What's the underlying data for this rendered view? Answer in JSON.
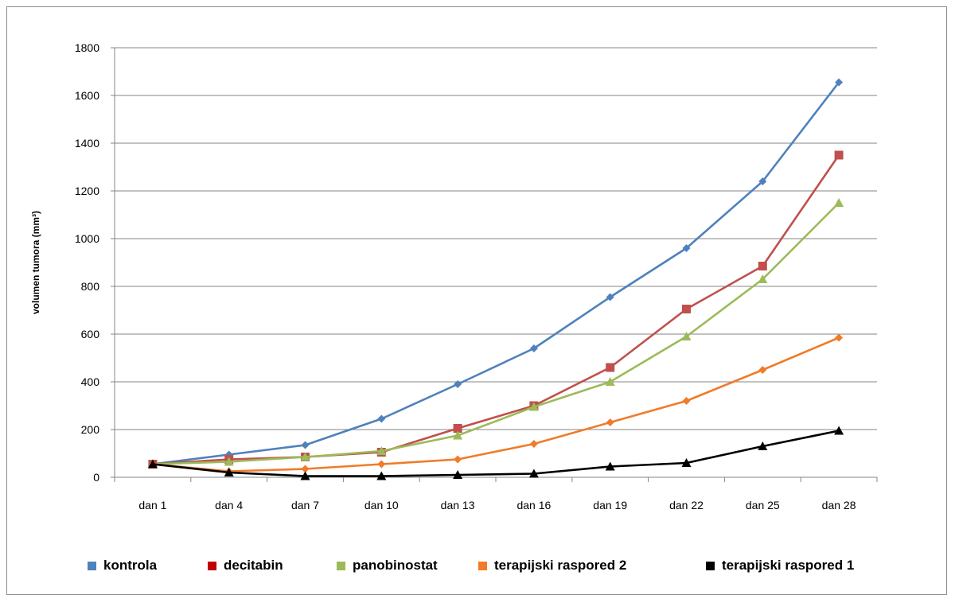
{
  "chart_data": {
    "type": "line",
    "title": "",
    "xlabel": "",
    "ylabel": "volumen tumora (mm³)",
    "ylim": [
      0,
      1800
    ],
    "yticks": [
      0,
      200,
      400,
      600,
      800,
      1000,
      1200,
      1400,
      1600,
      1800
    ],
    "grid": true,
    "legend_position": "bottom",
    "categories": [
      "dan 1",
      "dan 4",
      "dan 7",
      "dan 10",
      "dan 13",
      "dan 16",
      "dan 19",
      "dan 22",
      "dan 25",
      "dan 28"
    ],
    "series": [
      {
        "name": "kontrola",
        "color": "#4f81bd",
        "marker": "diamond",
        "values": [
          55,
          95,
          135,
          245,
          390,
          540,
          755,
          960,
          1240,
          1655
        ]
      },
      {
        "name": "decitabin",
        "color": "#c0504d",
        "legend_color": "#c00000",
        "marker": "square",
        "values": [
          55,
          75,
          85,
          105,
          205,
          300,
          460,
          705,
          885,
          1350
        ]
      },
      {
        "name": "panobinostat",
        "color": "#9bbb59",
        "marker": "triangle",
        "values": [
          55,
          65,
          85,
          110,
          175,
          295,
          400,
          590,
          830,
          1150
        ]
      },
      {
        "name": "terapijski raspored 2",
        "color": "#f07b29",
        "marker": "diamond",
        "values": [
          55,
          25,
          35,
          55,
          75,
          140,
          230,
          320,
          450,
          585
        ]
      },
      {
        "name": "terapijski raspored 1",
        "color": "#000000",
        "marker": "triangle",
        "values": [
          55,
          20,
          5,
          5,
          10,
          15,
          45,
          60,
          130,
          195
        ]
      }
    ]
  }
}
